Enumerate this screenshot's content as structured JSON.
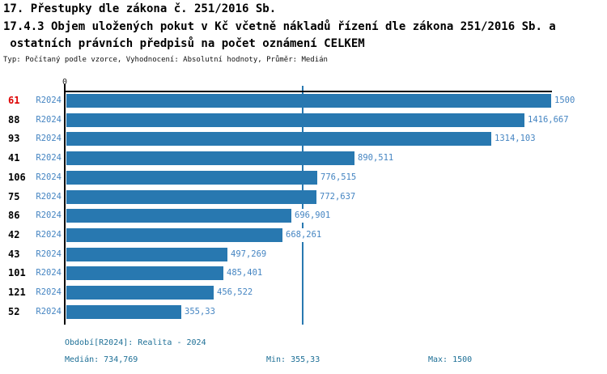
{
  "header": {
    "title_line1": "17. Přestupky dle zákona č. 251/2016 Sb.",
    "title_line2": "17.4.3 Objem uložených pokut v Kč včetně nákladů řízení dle zákona 251/2016 Sb. a",
    "title_line3": " ostatních právních předpisů na počet oznámení CELKEM",
    "subtitle": "Typ: Počítaný podle vzorce, Vyhodnocení: Absolutní hodnoty, Průměr: Medián"
  },
  "chart_data": {
    "type": "bar",
    "orientation": "horizontal",
    "title": "17.4.3 Objem uložených pokut v Kč včetně nákladů řízení dle zákona 251/2016 Sb. a ostatních právních předpisů na počet oznámení CELKEM",
    "categories": [
      "61",
      "88",
      "93",
      "41",
      "106",
      "75",
      "86",
      "42",
      "43",
      "101",
      "121",
      "52"
    ],
    "series": [
      {
        "name": "R2024",
        "values": [
          1500,
          1416.667,
          1314.103,
          890.511,
          776.515,
          772.637,
          696.901,
          668.261,
          497.269,
          485.401,
          456.522,
          355.33
        ],
        "value_labels": [
          "1500",
          "1416,667",
          "1314,103",
          "890,511",
          "776,515",
          "772,637",
          "696,901",
          "668,261",
          "497,269",
          "485,401",
          "456,522",
          "355,33"
        ]
      }
    ],
    "highlighted_category": "61",
    "xlim": [
      0,
      1500
    ],
    "x_axis_tick_labels": [
      "0"
    ],
    "median_line_value": 734.769,
    "grid": false,
    "legend_position": "none"
  },
  "footer": {
    "period_label": "Období[R2024]: Realita - 2024",
    "median_label": "Medián: 734,769",
    "min_label": "Min: 355,33",
    "max_label": "Max: 1500"
  },
  "colors": {
    "bar": "#2878b0",
    "value_text": "#4585c2",
    "period_text": "#4585c2",
    "category_text": "#000000",
    "highlight_text": "#dd0000",
    "footer_text": "#1d6f96",
    "axis": "#000000",
    "median_line": "#2878b0"
  }
}
